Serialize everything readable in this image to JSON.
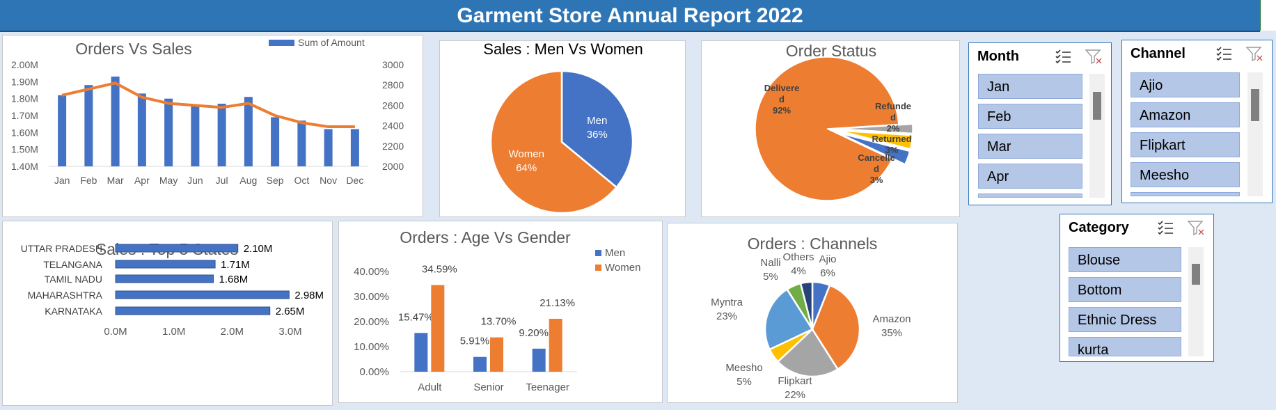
{
  "header": {
    "title": "Garment Store Annual Report 2022"
  },
  "colors": {
    "blue": "#4472c4",
    "orange": "#ed7d31",
    "gray": "#a5a5a5",
    "gold": "#ffc000",
    "lightblue": "#5b9bd5",
    "green": "#70ad47",
    "navy": "#264478"
  },
  "slicers": {
    "month": {
      "title": "Month",
      "items": [
        "Jan",
        "Feb",
        "Mar",
        "Apr"
      ]
    },
    "channel": {
      "title": "Channel",
      "items": [
        "Ajio",
        "Amazon",
        "Flipkart",
        "Meesho"
      ]
    },
    "category": {
      "title": "Category",
      "items": [
        "Blouse",
        "Bottom",
        "Ethnic Dress",
        "kurta"
      ]
    }
  },
  "chart_data": [
    {
      "type": "bar",
      "title": "Orders Vs Sales",
      "categories": [
        "Jan",
        "Feb",
        "Mar",
        "Apr",
        "May",
        "Jun",
        "Jul",
        "Aug",
        "Sep",
        "Oct",
        "Nov",
        "Dec"
      ],
      "series": [
        {
          "name": "Sum of Amount",
          "type": "bar",
          "axis": "left",
          "values": [
            1.82,
            1.88,
            1.93,
            1.83,
            1.8,
            1.76,
            1.77,
            1.81,
            1.69,
            1.67,
            1.62,
            1.62
          ]
        },
        {
          "name": "",
          "type": "line",
          "axis": "right",
          "values": [
            2700,
            2760,
            2820,
            2680,
            2620,
            2600,
            2580,
            2620,
            2500,
            2430,
            2390,
            2390
          ]
        }
      ],
      "y_ticks": [
        "1.40M",
        "1.50M",
        "1.60M",
        "1.70M",
        "1.80M",
        "1.90M",
        "2.00M"
      ],
      "ylim": [
        1.4,
        2.0
      ],
      "y2_ticks": [
        "2000",
        "2200",
        "2400",
        "2600",
        "2800",
        "3000"
      ],
      "y2lim": [
        2000,
        3000
      ],
      "legend": "top-right"
    },
    {
      "type": "pie",
      "title": "Sales : Men Vs Women",
      "slices": [
        {
          "name": "Men",
          "value": 36,
          "label": "36%"
        },
        {
          "name": "Women",
          "value": 64,
          "label": "64%"
        }
      ]
    },
    {
      "type": "pie",
      "title": "Order Status",
      "slices": [
        {
          "name": "Delivere\nd",
          "value": 92,
          "label": "92%"
        },
        {
          "name": "Refunde\nd",
          "value": 2,
          "label": "2%"
        },
        {
          "name": "Returned",
          "value": 3,
          "label": "3%"
        },
        {
          "name": "Cancelle\nd",
          "value": 3,
          "label": "3%"
        }
      ]
    },
    {
      "type": "bar",
      "orientation": "horizontal",
      "title": "Sales : Top 5 States",
      "categories": [
        "UTTAR PRADESH",
        "TELANGANA",
        "TAMIL NADU",
        "MAHARASHTRA",
        "KARNATAKA"
      ],
      "values": [
        2.1,
        1.71,
        1.68,
        2.98,
        2.65
      ],
      "labels": [
        "2.10M",
        "1.71M",
        "1.68M",
        "2.98M",
        "2.65M"
      ],
      "x_ticks": [
        "0.0M",
        "1.0M",
        "2.0M",
        "3.0M"
      ],
      "xlim": [
        0,
        3.0
      ]
    },
    {
      "type": "bar",
      "title": "Orders : Age Vs Gender",
      "categories": [
        "Adult",
        "Senior",
        "Teenager"
      ],
      "series": [
        {
          "name": "Men",
          "values": [
            15.47,
            5.91,
            9.2
          ],
          "labels": [
            "15.47%",
            "5.91%",
            "9.20%"
          ]
        },
        {
          "name": "Women",
          "values": [
            34.59,
            13.7,
            21.13
          ],
          "labels": [
            "34.59%",
            "13.70%",
            "21.13%"
          ]
        }
      ],
      "y_ticks": [
        "0.00%",
        "10.00%",
        "20.00%",
        "30.00%",
        "40.00%"
      ],
      "ylim": [
        0,
        40
      ],
      "legend": "top-right"
    },
    {
      "type": "pie",
      "title": "Orders : Channels",
      "slices": [
        {
          "name": "Ajio",
          "value": 6,
          "label": "6%"
        },
        {
          "name": "Amazon",
          "value": 35,
          "label": "35%"
        },
        {
          "name": "Flipkart",
          "value": 22,
          "label": "22%"
        },
        {
          "name": "Meesho",
          "value": 5,
          "label": "5%"
        },
        {
          "name": "Myntra",
          "value": 23,
          "label": "23%"
        },
        {
          "name": "Nalli",
          "value": 5,
          "label": "5%"
        },
        {
          "name": "Others",
          "value": 4,
          "label": "4%"
        }
      ]
    }
  ]
}
